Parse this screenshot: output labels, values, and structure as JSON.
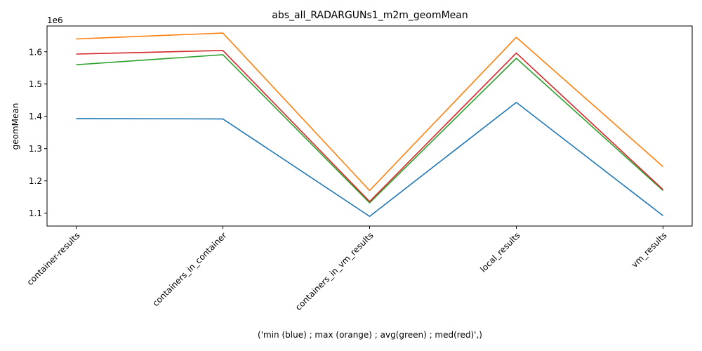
{
  "chart_data": {
    "type": "line",
    "title": "abs_all_RADARGUNs1_m2m_geomMean",
    "xlabel": "('min (blue) ; max (orange) ; avg(green) ; med(red)',)",
    "ylabel": "geomMean",
    "y_offset_label": "1e6",
    "y_scale": 1000000,
    "categories": [
      "container-results",
      "containers_in_container",
      "containers_in_vm_results",
      "local_results",
      "vm_results"
    ],
    "y_ticks": [
      1100000,
      1200000,
      1300000,
      1400000,
      1500000,
      1600000
    ],
    "y_tick_labels": [
      "1.1",
      "1.2",
      "1.3",
      "1.4",
      "1.5",
      "1.6"
    ],
    "ylim": [
      1060000,
      1680000
    ],
    "grid": false,
    "legend": "none",
    "series": [
      {
        "color": "#1f77b4",
        "values": [
          1393000,
          1392000,
          1090000,
          1443000,
          1092000
        ]
      },
      {
        "color": "#ff7f0e",
        "values": [
          1640000,
          1658000,
          1170000,
          1645000,
          1244000
        ]
      },
      {
        "color": "#2ca02c",
        "values": [
          1560000,
          1591000,
          1132000,
          1580000,
          1170000
        ]
      },
      {
        "color": "#d62728",
        "values": [
          1593000,
          1604000,
          1136000,
          1596000,
          1173000
        ]
      }
    ]
  }
}
